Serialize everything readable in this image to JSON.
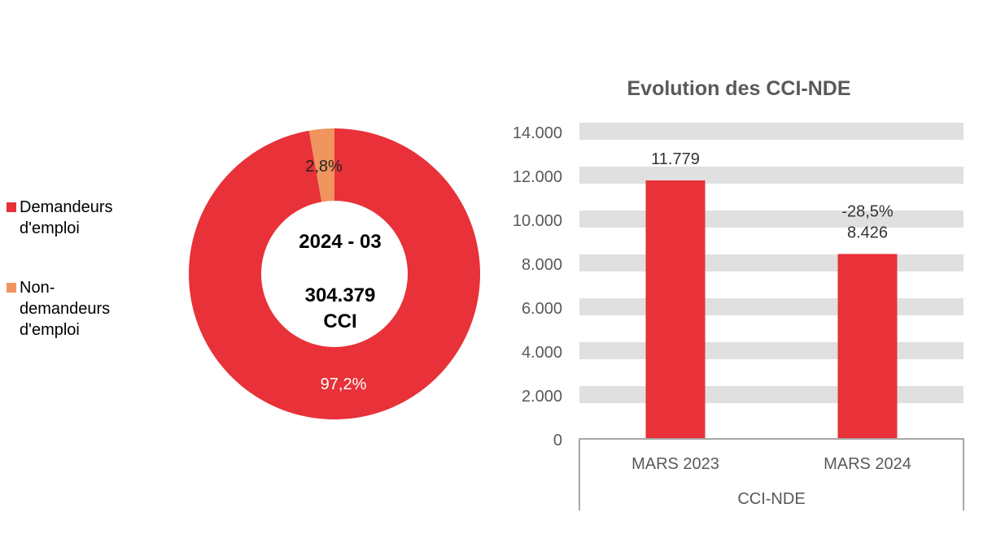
{
  "chart_data": [
    {
      "type": "pie",
      "variant": "donut",
      "center_text": {
        "line1": "2024 - 03",
        "line2": "304.379",
        "line3": "CCI"
      },
      "legend_position": "left",
      "slices": [
        {
          "name": "Demandeurs d'emploi",
          "value": 97.2,
          "label": "97,2%",
          "color": "#e83138"
        },
        {
          "name": "Non-demandeurs d'emploi",
          "value": 2.8,
          "label": "2,8%",
          "color": "#f0955e"
        }
      ]
    },
    {
      "type": "bar",
      "title": "Evolution des CCI-NDE",
      "categories": [
        "MARS 2023",
        "MARS 2024"
      ],
      "group_label": "CCI-NDE",
      "values": [
        11779,
        8426
      ],
      "data_labels": [
        "11.779",
        "8.426"
      ],
      "annotations": [
        "",
        "-28,5%"
      ],
      "ylim": [
        0,
        14000
      ],
      "yticks": [
        "0",
        "2.000",
        "4.000",
        "6.000",
        "8.000",
        "10.000",
        "12.000",
        "14.000"
      ],
      "grid": "banded",
      "bar_color": "#e83138",
      "band_color": "#e0e0e0"
    }
  ]
}
